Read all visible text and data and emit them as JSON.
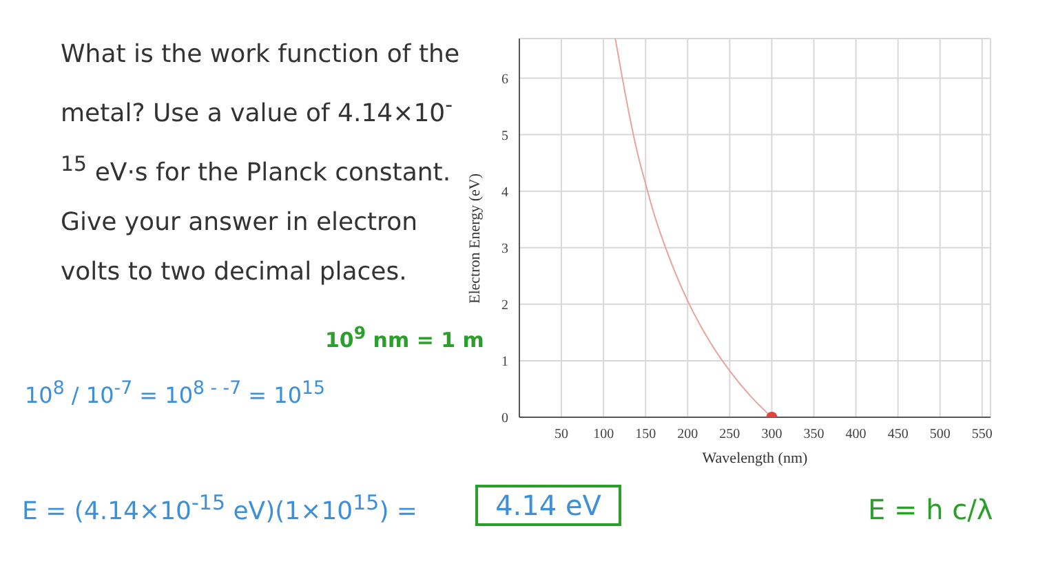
{
  "chart_data": {
    "type": "line",
    "xlabel": "Wavelength (nm)",
    "ylabel": "Electron Energy (eV)",
    "series": [
      {
        "color": "#e8a49c",
        "marker": "none",
        "x": [
          114,
          120,
          130,
          140,
          150,
          160,
          175,
          200,
          225,
          250,
          275,
          300
        ],
        "values": [
          6.7,
          6.2,
          5.4,
          4.7,
          4.13,
          3.6,
          2.95,
          2.06,
          1.37,
          0.82,
          0.37,
          0
        ]
      },
      {
        "type": "scatter",
        "color": "#e0443a",
        "marker": "circle",
        "x": [
          300
        ],
        "values": [
          0
        ]
      }
    ],
    "xlim": [
      0,
      560
    ],
    "xticks": [
      50,
      100,
      150,
      200,
      250,
      300,
      350,
      400,
      450,
      500,
      550
    ],
    "ylim": [
      0,
      6.7
    ],
    "yticks": [
      0,
      1,
      2,
      3,
      4,
      5,
      6
    ],
    "grid": true,
    "annotations": [
      "What is the work function of the metal? Use a value of 4.14×10$^{-15}$ eV·s for the Planck constant. Give your answer in electron volts to two decimal places.",
      "10$^{9}$ nm = 1 m",
      "10$^{8}$ / 10$^{-7}$ = 10$^{8 - -7}$ = 10$^{15}$",
      "E = (4.14×10$^{-15}$ eV)(1×10$^{15}$) =",
      "4.14 eV",
      "E = h c/λ"
    ]
  }
}
